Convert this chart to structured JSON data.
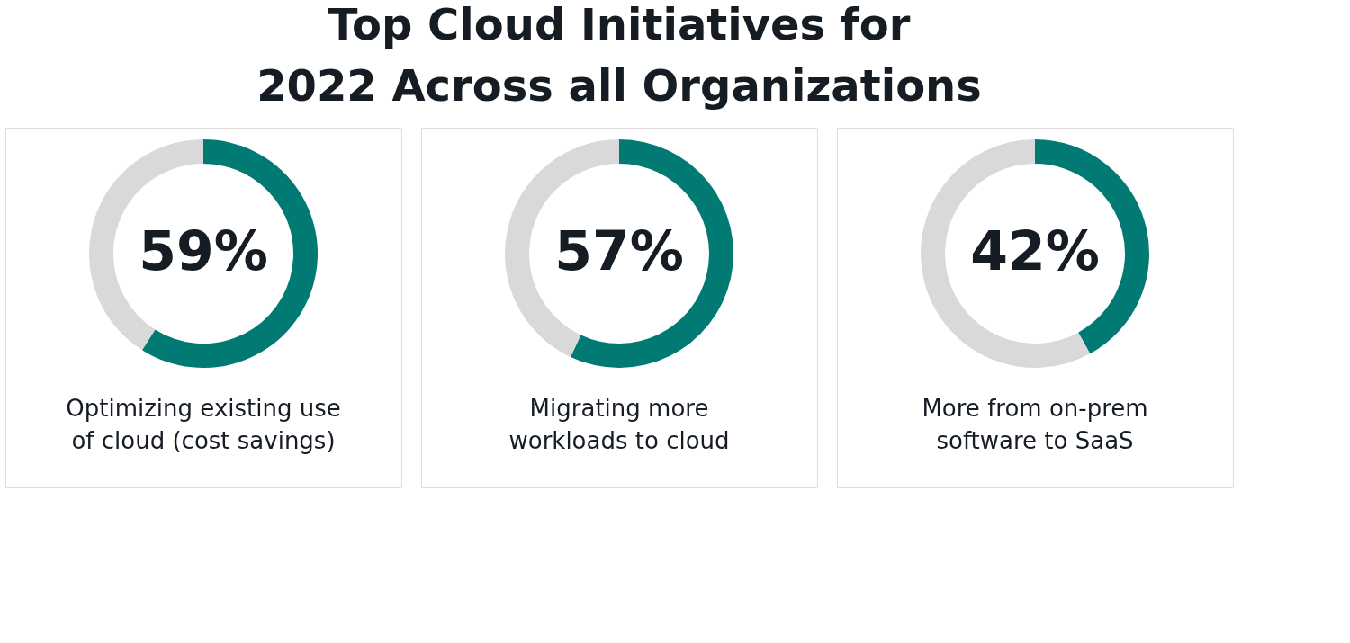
{
  "chart_data": [
    {
      "type": "donut",
      "title": "Top Cloud Initiatives for 2022 Across all Organizations",
      "xlabel": "Optimizing existing use of cloud (cost savings)",
      "categories": [
        null,
        null
      ],
      "values": [
        59,
        41
      ],
      "colors": [
        "#007a73",
        "#d9d9d9"
      ],
      "value_labels": [
        "59%",
        null
      ]
    },
    {
      "type": "donut",
      "xlabel": "Migrating more workloads to cloud",
      "categories": [
        null,
        null
      ],
      "values": [
        57,
        43
      ],
      "colors": [
        "#007a73",
        "#d9d9d9"
      ],
      "value_labels": [
        "57%",
        null
      ]
    },
    {
      "type": "donut",
      "xlabel": "More from on-prem software to SaaS",
      "categories": [
        null,
        null
      ],
      "values": [
        42,
        58
      ],
      "colors": [
        "#007a73",
        "#d9d9d9"
      ],
      "value_labels": [
        "42%",
        null
      ]
    }
  ]
}
